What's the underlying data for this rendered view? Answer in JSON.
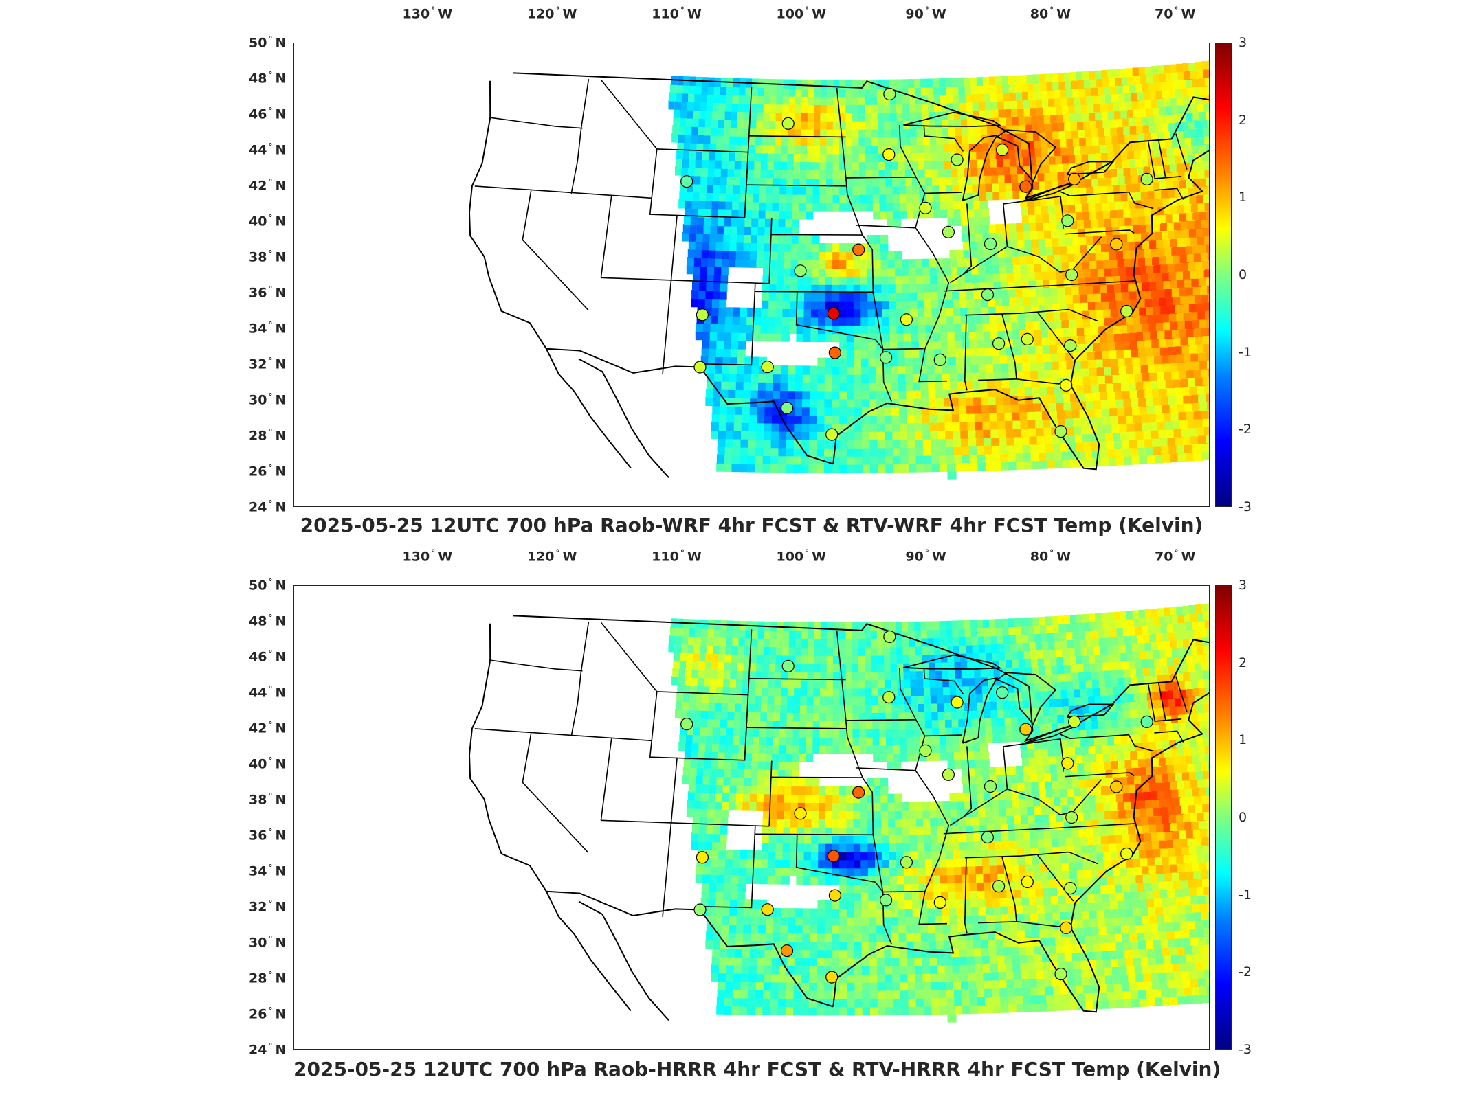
{
  "colors": {
    "border": "#262626",
    "cb_top": "#800000",
    "cb_mid": "#80ff80",
    "cb_bottom": "#000080"
  },
  "axes": {
    "lon_ticks": [
      "130",
      "120",
      "110",
      "100",
      "90",
      "80",
      "70"
    ],
    "lon_hemisphere": "W",
    "lat_ticks": [
      "50",
      "48",
      "46",
      "44",
      "42",
      "40",
      "38",
      "36",
      "34",
      "32",
      "30",
      "28",
      "26",
      "24"
    ],
    "lat_hemisphere": "N",
    "colorbar_ticks": [
      "3",
      "2",
      "1",
      "0",
      "-1",
      "-2",
      "-3"
    ]
  },
  "panels": [
    {
      "title": "2025-05-25 12UTC 700 hPa Raob-WRF 4hr FCST & RTV-WRF 4hr FCST Temp (Kelvin)",
      "stations": [
        {
          "name": "s1",
          "lon": -93.0,
          "lat": 48.6,
          "value": 0.2
        },
        {
          "name": "s2",
          "lon": -101.0,
          "lat": 46.8,
          "value": 0.3
        },
        {
          "name": "s3",
          "lon": -93.2,
          "lat": 44.9,
          "value": 0.6
        },
        {
          "name": "s4",
          "lon": -88.0,
          "lat": 44.5,
          "value": 0.2
        },
        {
          "name": "s5",
          "lon": -84.5,
          "lat": 45.0,
          "value": 0.4
        },
        {
          "name": "s6",
          "lon": -83.0,
          "lat": 42.7,
          "value": 1.5
        },
        {
          "name": "s7",
          "lon": -79.3,
          "lat": 43.0,
          "value": 1.0
        },
        {
          "name": "s8",
          "lon": -73.9,
          "lat": 42.7,
          "value": 0.2
        },
        {
          "name": "s9",
          "lon": -108.5,
          "lat": 43.1,
          "value": -0.2
        },
        {
          "name": "s10",
          "lon": -90.6,
          "lat": 41.6,
          "value": 0.4
        },
        {
          "name": "s11",
          "lon": -89.0,
          "lat": 40.1,
          "value": 0.2
        },
        {
          "name": "s12",
          "lon": -80.2,
          "lat": 40.5,
          "value": 0.1
        },
        {
          "name": "s13",
          "lon": -95.6,
          "lat": 39.1,
          "value": 1.4
        },
        {
          "name": "s14",
          "lon": -86.0,
          "lat": 39.3,
          "value": 0.0
        },
        {
          "name": "s15",
          "lon": -76.9,
          "lat": 38.9,
          "value": 0.9
        },
        {
          "name": "s16",
          "lon": -99.8,
          "lat": 37.8,
          "value": 0.1
        },
        {
          "name": "s17",
          "lon": -80.4,
          "lat": 37.2,
          "value": 0.2
        },
        {
          "name": "s18",
          "lon": -86.5,
          "lat": 36.2,
          "value": 0.0
        },
        {
          "name": "s19",
          "lon": -106.6,
          "lat": 35.0,
          "value": 0.3
        },
        {
          "name": "s20",
          "lon": -97.4,
          "lat": 35.2,
          "value": 2.3
        },
        {
          "name": "s21",
          "lon": -92.3,
          "lat": 34.8,
          "value": 0.5
        },
        {
          "name": "s22",
          "lon": -76.9,
          "lat": 34.8,
          "value": 0.3
        },
        {
          "name": "s23",
          "lon": -97.3,
          "lat": 32.8,
          "value": 1.5
        },
        {
          "name": "s24",
          "lon": -84.0,
          "lat": 33.4,
          "value": 0.4
        },
        {
          "name": "s25",
          "lon": -86.0,
          "lat": 33.2,
          "value": 0.2
        },
        {
          "name": "s26",
          "lon": -90.1,
          "lat": 32.3,
          "value": 0.1
        },
        {
          "name": "s27",
          "lon": -93.8,
          "lat": 32.5,
          "value": 0.0
        },
        {
          "name": "s28",
          "lon": -81.1,
          "lat": 32.9,
          "value": 0.2
        },
        {
          "name": "s29",
          "lon": -101.9,
          "lat": 31.9,
          "value": 0.4
        },
        {
          "name": "s30",
          "lon": -106.5,
          "lat": 31.8,
          "value": 0.4
        },
        {
          "name": "s31",
          "lon": -81.7,
          "lat": 30.5,
          "value": 0.6
        },
        {
          "name": "s32",
          "lon": -100.5,
          "lat": 29.4,
          "value": 0.0
        },
        {
          "name": "s33",
          "lon": -97.5,
          "lat": 27.8,
          "value": 0.4
        },
        {
          "name": "s34",
          "lon": -82.4,
          "lat": 27.7,
          "value": 0.2
        }
      ]
    },
    {
      "title": "2025-05-25 12UTC 700 hPa Raob-HRRR 4hr FCST & RTV-HRRR 4hr FCST Temp (Kelvin)",
      "stations": [
        {
          "name": "s1",
          "lon": -93.0,
          "lat": 48.6,
          "value": 0.2
        },
        {
          "name": "s2",
          "lon": -101.0,
          "lat": 46.8,
          "value": 0.0
        },
        {
          "name": "s3",
          "lon": -93.2,
          "lat": 44.9,
          "value": 0.3
        },
        {
          "name": "s4",
          "lon": -88.0,
          "lat": 44.5,
          "value": 0.6
        },
        {
          "name": "s5",
          "lon": -84.5,
          "lat": 45.0,
          "value": -0.2
        },
        {
          "name": "s6",
          "lon": -83.0,
          "lat": 42.7,
          "value": 0.9
        },
        {
          "name": "s7",
          "lon": -79.3,
          "lat": 43.0,
          "value": 0.4
        },
        {
          "name": "s8",
          "lon": -73.9,
          "lat": 42.7,
          "value": -0.2
        },
        {
          "name": "s9",
          "lon": -108.5,
          "lat": 43.1,
          "value": 0.1
        },
        {
          "name": "s10",
          "lon": -90.6,
          "lat": 41.6,
          "value": 0.2
        },
        {
          "name": "s11",
          "lon": -89.0,
          "lat": 40.1,
          "value": 0.3
        },
        {
          "name": "s12",
          "lon": -80.2,
          "lat": 40.5,
          "value": 0.7
        },
        {
          "name": "s13",
          "lon": -95.6,
          "lat": 39.1,
          "value": 1.5
        },
        {
          "name": "s14",
          "lon": -86.0,
          "lat": 39.3,
          "value": 0.1
        },
        {
          "name": "s15",
          "lon": -76.9,
          "lat": 38.9,
          "value": 0.9
        },
        {
          "name": "s16",
          "lon": -99.8,
          "lat": 37.8,
          "value": 0.7
        },
        {
          "name": "s17",
          "lon": -80.4,
          "lat": 37.2,
          "value": 0.2
        },
        {
          "name": "s18",
          "lon": -86.5,
          "lat": 36.2,
          "value": 0.0
        },
        {
          "name": "s19",
          "lon": -106.6,
          "lat": 35.0,
          "value": 0.7
        },
        {
          "name": "s20",
          "lon": -97.4,
          "lat": 35.2,
          "value": 1.6
        },
        {
          "name": "s21",
          "lon": -92.3,
          "lat": 34.8,
          "value": 0.2
        },
        {
          "name": "s22",
          "lon": -76.9,
          "lat": 34.8,
          "value": 0.5
        },
        {
          "name": "s23",
          "lon": -97.3,
          "lat": 32.8,
          "value": 0.8
        },
        {
          "name": "s24",
          "lon": -84.0,
          "lat": 33.4,
          "value": 0.6
        },
        {
          "name": "s25",
          "lon": -86.0,
          "lat": 33.2,
          "value": 0.2
        },
        {
          "name": "s26",
          "lon": -90.1,
          "lat": 32.3,
          "value": 0.6
        },
        {
          "name": "s27",
          "lon": -93.8,
          "lat": 32.5,
          "value": 0.0
        },
        {
          "name": "s28",
          "lon": -81.1,
          "lat": 32.9,
          "value": 0.3
        },
        {
          "name": "s29",
          "lon": -101.9,
          "lat": 31.9,
          "value": 0.8
        },
        {
          "name": "s30",
          "lon": -106.5,
          "lat": 31.8,
          "value": 0.1
        },
        {
          "name": "s31",
          "lon": -81.7,
          "lat": 30.5,
          "value": 0.8
        },
        {
          "name": "s32",
          "lon": -100.5,
          "lat": 29.4,
          "value": 1.2
        },
        {
          "name": "s33",
          "lon": -97.5,
          "lat": 27.8,
          "value": 0.8
        },
        {
          "name": "s34",
          "lon": -82.4,
          "lat": 27.7,
          "value": 0.2
        }
      ]
    }
  ]
}
